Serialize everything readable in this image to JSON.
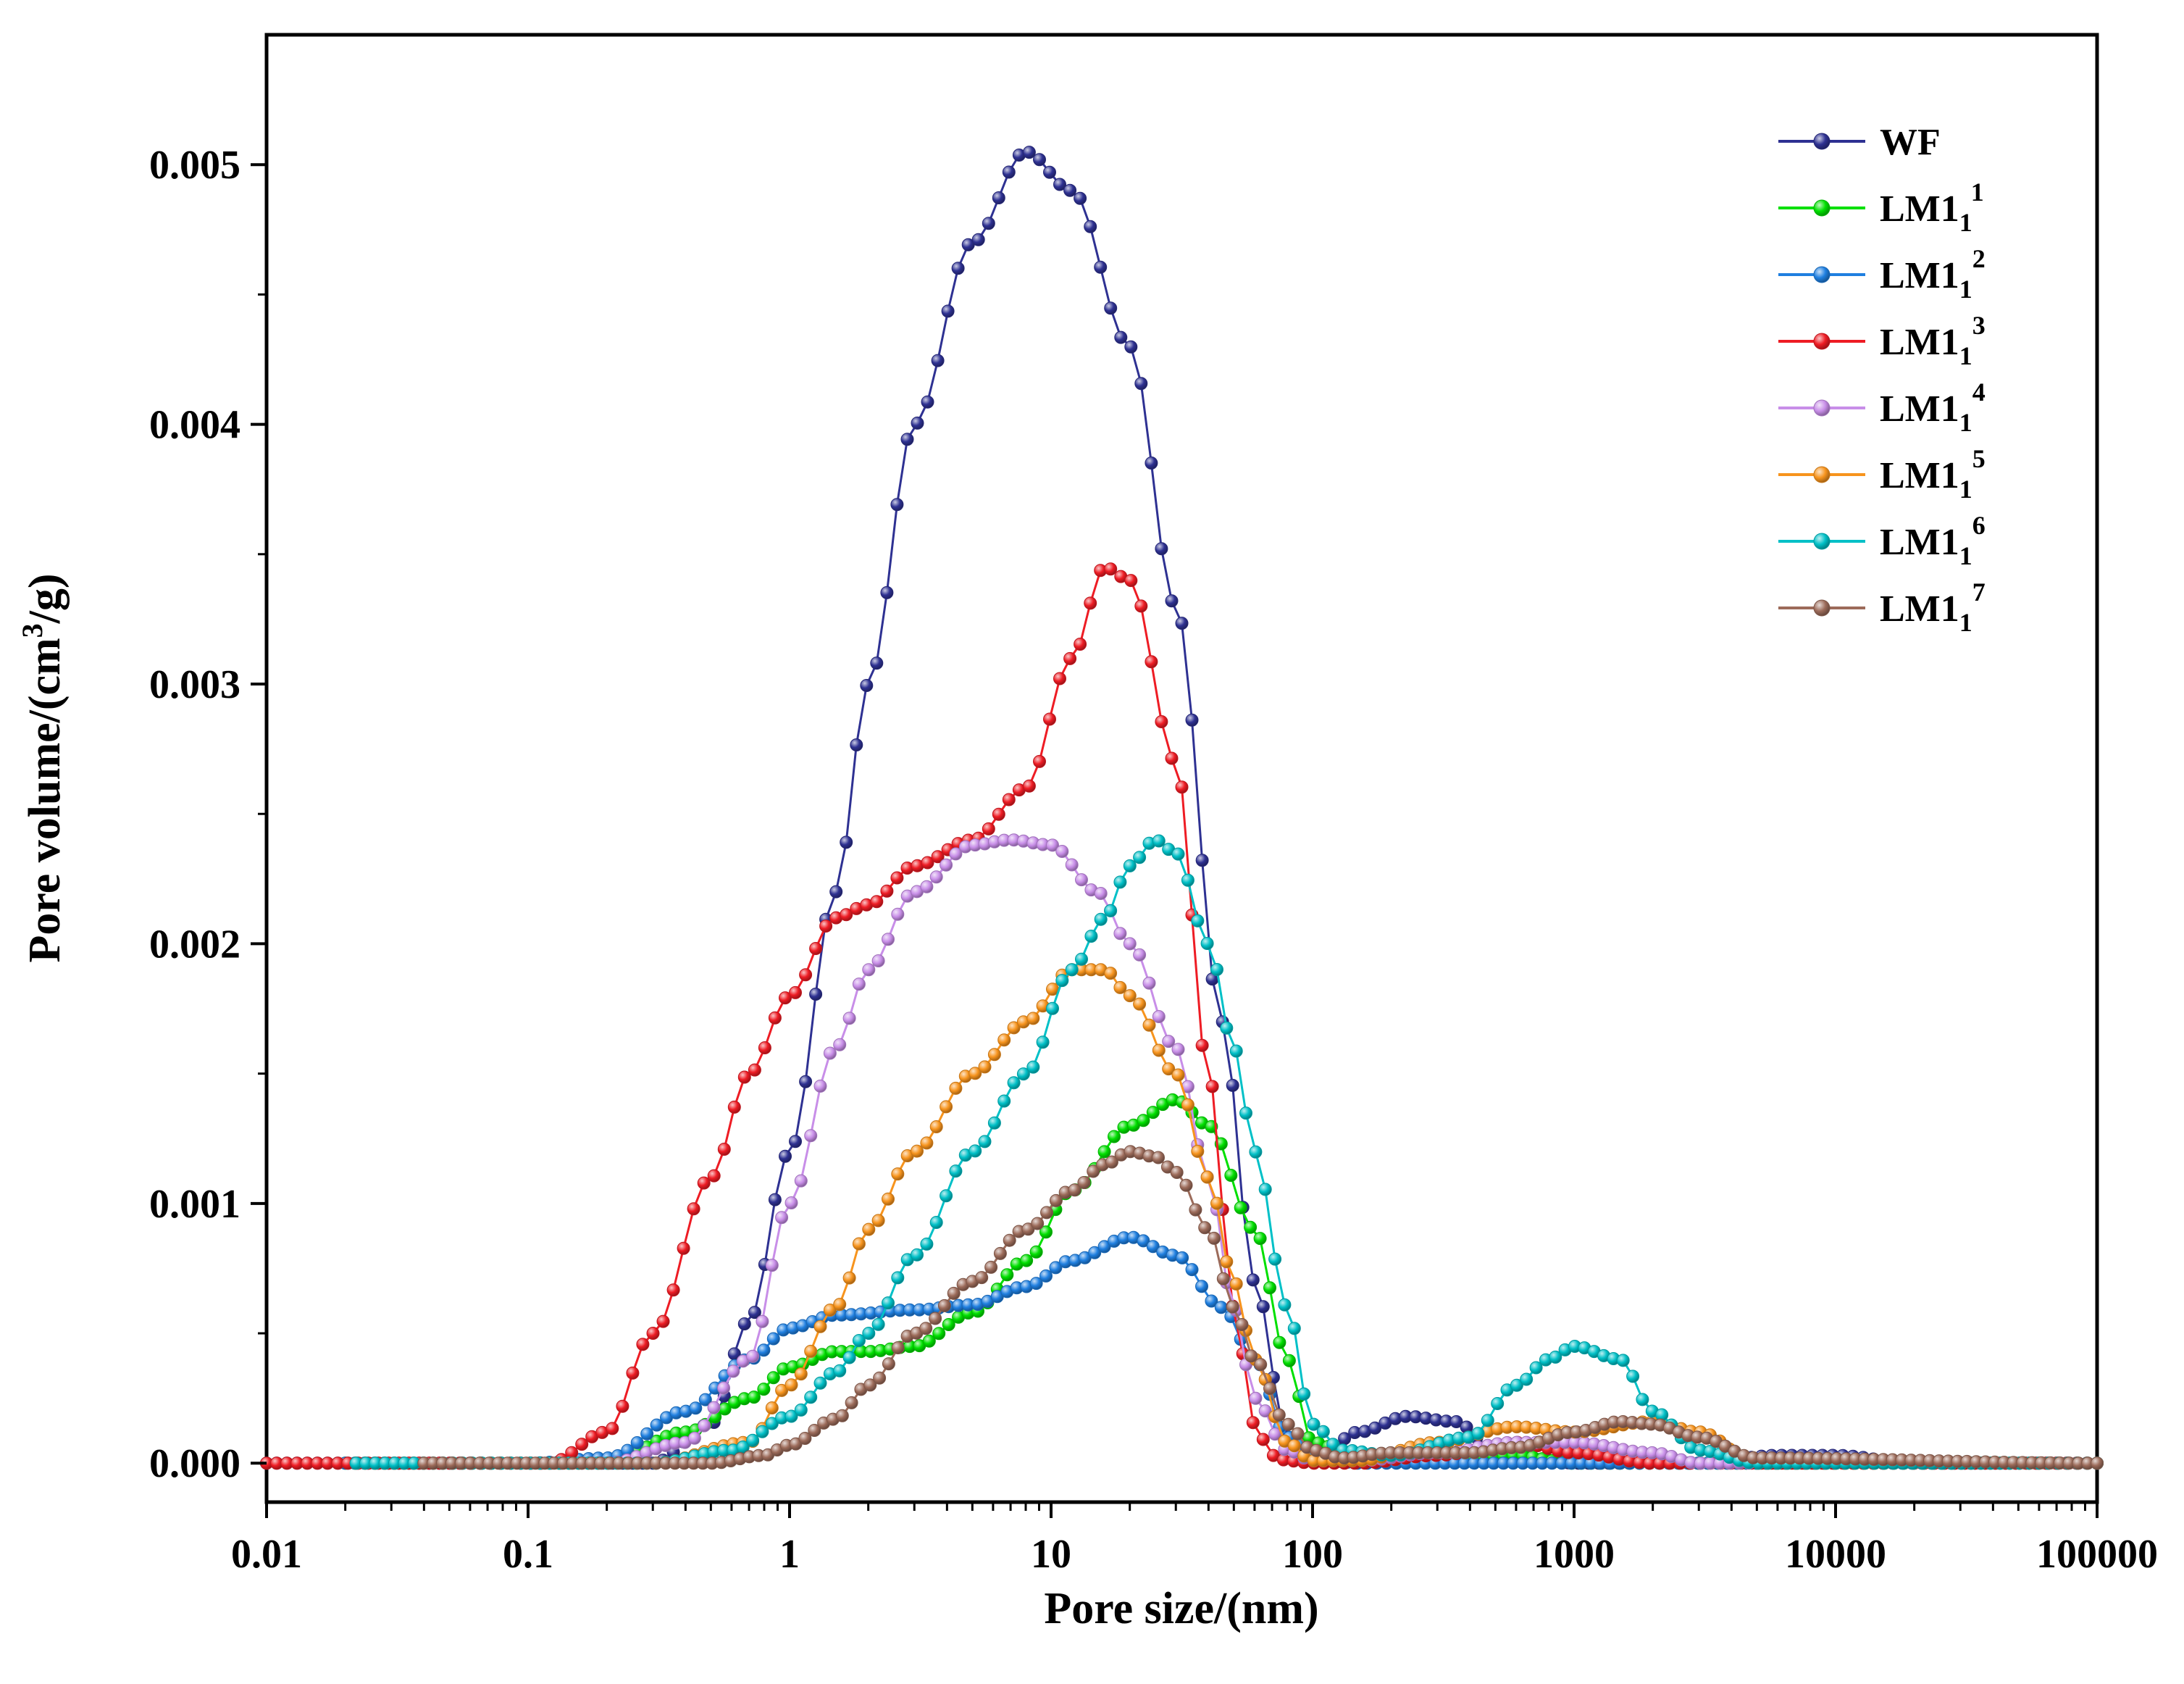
{
  "chart_data": {
    "type": "line",
    "title": "",
    "xlabel": "Pore size/(nm)",
    "ylabel_parts": [
      "Pore volume/(cm",
      "3",
      "/g)"
    ],
    "xscale": "log",
    "xlim": [
      0.01,
      100000
    ],
    "ylim": [
      -0.00015,
      0.0055
    ],
    "xticks": [
      0.01,
      0.1,
      1,
      10,
      100,
      1000,
      10000,
      100000
    ],
    "xtick_labels": [
      "0.01",
      "0.1",
      "1",
      "10",
      "100",
      "1000",
      "10000",
      "100000"
    ],
    "yticks": [
      0,
      0.001,
      0.002,
      0.003,
      0.004,
      0.005
    ],
    "ytick_labels": [
      "0.000",
      "0.001",
      "0.002",
      "0.003",
      "0.004",
      "0.005"
    ],
    "legend_position": "top-right",
    "series": [
      {
        "name": "WF",
        "sub": "",
        "sup": "",
        "color": "#2e3192",
        "start": 0.01,
        "x": [
          0.01,
          0.3,
          0.5,
          0.7,
          1,
          1.5,
          2,
          3,
          5,
          8,
          12,
          20,
          30,
          45,
          60,
          80,
          100,
          150,
          230,
          350,
          500,
          800,
          1000,
          3000,
          6000,
          10000,
          20000,
          100000
        ],
        "y": [
          0,
          0,
          0.00015,
          0.00055,
          0.0012,
          0.0022,
          0.003,
          0.004,
          0.0047,
          0.00505,
          0.0049,
          0.0043,
          0.0033,
          0.0017,
          0.0007,
          0.0001,
          0,
          0.00012,
          0.00018,
          0.00016,
          5e-05,
          1e-05,
          0,
          0,
          3e-05,
          3e-05,
          0,
          0
        ]
      },
      {
        "name": "LM1",
        "sub": "1",
        "sup": "1",
        "color": "#00e000",
        "start": 0.02,
        "x": [
          0.01,
          0.1,
          0.2,
          0.4,
          0.7,
          1,
          1.5,
          2,
          3,
          5,
          8,
          12,
          20,
          30,
          40,
          60,
          80,
          100,
          150,
          300,
          600,
          1000,
          100000
        ],
        "y": [
          0,
          0,
          0,
          0.00012,
          0.00025,
          0.00037,
          0.00043,
          0.00043,
          0.00045,
          0.00058,
          0.00078,
          0.00105,
          0.0013,
          0.0014,
          0.0013,
          0.0009,
          0.0004,
          8e-05,
          2e-05,
          1e-05,
          3e-05,
          0,
          0
        ]
      },
      {
        "name": "LM1",
        "sub": "1",
        "sup": "2",
        "color": "#1f7fe0",
        "start": 0.02,
        "x": [
          0.01,
          0.1,
          0.2,
          0.4,
          0.7,
          1,
          1.5,
          3,
          5,
          8,
          12,
          20,
          30,
          45,
          60,
          80,
          100,
          130,
          150,
          300,
          100000
        ],
        "y": [
          0,
          0,
          2e-05,
          0.0002,
          0.0004,
          0.00052,
          0.00057,
          0.00059,
          0.00061,
          0.00068,
          0.00078,
          0.00087,
          0.0008,
          0.0006,
          0.0004,
          0.0001,
          3e-05,
          5e-06,
          0,
          0,
          0
        ]
      },
      {
        "name": "LM1",
        "sub": "1",
        "sup": "3",
        "color": "#ee1c24",
        "start": 0.01,
        "x": [
          0.01,
          0.12,
          0.2,
          0.3,
          0.5,
          0.7,
          1,
          1.5,
          2,
          3,
          5,
          8,
          12,
          16,
          20,
          30,
          40,
          50,
          60,
          70,
          80,
          100,
          150,
          300,
          600,
          1000,
          2000,
          100000
        ],
        "y": [
          0,
          0,
          0.00012,
          0.0005,
          0.0011,
          0.0015,
          0.0018,
          0.0021,
          0.00215,
          0.0023,
          0.0024,
          0.0026,
          0.0031,
          0.00345,
          0.0034,
          0.0027,
          0.0015,
          0.0006,
          0.00015,
          3e-05,
          1e-05,
          0,
          0,
          3e-05,
          8e-05,
          4e-05,
          0,
          0
        ]
      },
      {
        "name": "LM1",
        "sub": "1",
        "sup": "4",
        "color": "#c88ee8",
        "start": 0.022,
        "x": [
          0.01,
          0.2,
          0.4,
          0.7,
          1,
          1.5,
          2,
          3,
          5,
          7,
          10,
          15,
          20,
          30,
          40,
          50,
          60,
          80,
          100,
          150,
          300,
          600,
          1000,
          2000,
          3000,
          100000
        ],
        "y": [
          0,
          0,
          8e-05,
          0.0004,
          0.001,
          0.0016,
          0.0019,
          0.0022,
          0.00238,
          0.0024,
          0.00238,
          0.0022,
          0.002,
          0.0016,
          0.0011,
          0.0006,
          0.00025,
          5e-05,
          1e-05,
          1e-05,
          4e-05,
          8e-05,
          8e-05,
          4e-05,
          0,
          0
        ]
      },
      {
        "name": "LM1",
        "sub": "1",
        "sup": "5",
        "color": "#f7941d",
        "start": 0.022,
        "x": [
          0.01,
          0.3,
          0.7,
          1,
          1.5,
          2,
          3,
          5,
          8,
          12,
          16,
          20,
          30,
          40,
          50,
          60,
          80,
          100,
          150,
          300,
          600,
          1000,
          2000,
          3000,
          5000,
          100000
        ],
        "y": [
          0,
          0,
          8e-05,
          0.0003,
          0.0006,
          0.0009,
          0.0012,
          0.0015,
          0.0017,
          0.0019,
          0.0019,
          0.0018,
          0.0015,
          0.0011,
          0.0007,
          0.0004,
          8e-05,
          1e-05,
          1e-05,
          8e-05,
          0.00014,
          0.00012,
          0.00016,
          0.00012,
          0,
          0
        ]
      },
      {
        "name": "LM1",
        "sub": "1",
        "sup": "6",
        "color": "#00c0c7",
        "start": 0.022,
        "x": [
          0.01,
          0.3,
          0.6,
          1,
          1.5,
          2,
          3,
          5,
          8,
          12,
          16,
          20,
          25,
          30,
          40,
          50,
          60,
          80,
          100,
          130,
          200,
          400,
          600,
          800,
          1000,
          1500,
          2000,
          3000,
          5000,
          100000
        ],
        "y": [
          0,
          0,
          5e-05,
          0.00018,
          0.00035,
          0.0005,
          0.0008,
          0.0012,
          0.0015,
          0.0019,
          0.0021,
          0.0023,
          0.0024,
          0.00235,
          0.002,
          0.0016,
          0.0012,
          0.0006,
          0.00015,
          5e-05,
          3e-05,
          0.0001,
          0.0003,
          0.0004,
          0.00045,
          0.0004,
          0.0002,
          5e-05,
          0,
          0
        ]
      },
      {
        "name": "LM1",
        "sub": "1",
        "sup": "7",
        "color": "#9c6b5a",
        "start": 0.04,
        "x": [
          0.01,
          0.5,
          0.8,
          1,
          1.5,
          2,
          3,
          5,
          8,
          12,
          16,
          20,
          25,
          30,
          40,
          50,
          60,
          80,
          100,
          130,
          200,
          400,
          600,
          1000,
          1500,
          2000,
          3000,
          5000,
          100000
        ],
        "y": [
          0,
          0,
          3e-05,
          7e-05,
          0.00017,
          0.0003,
          0.0005,
          0.0007,
          0.0009,
          0.00105,
          0.00115,
          0.0012,
          0.00118,
          0.00112,
          0.0009,
          0.0006,
          0.0004,
          0.00015,
          5e-05,
          2e-05,
          4e-05,
          4e-05,
          6e-05,
          0.00012,
          0.00016,
          0.00015,
          0.0001,
          2e-05,
          0
        ]
      }
    ]
  }
}
